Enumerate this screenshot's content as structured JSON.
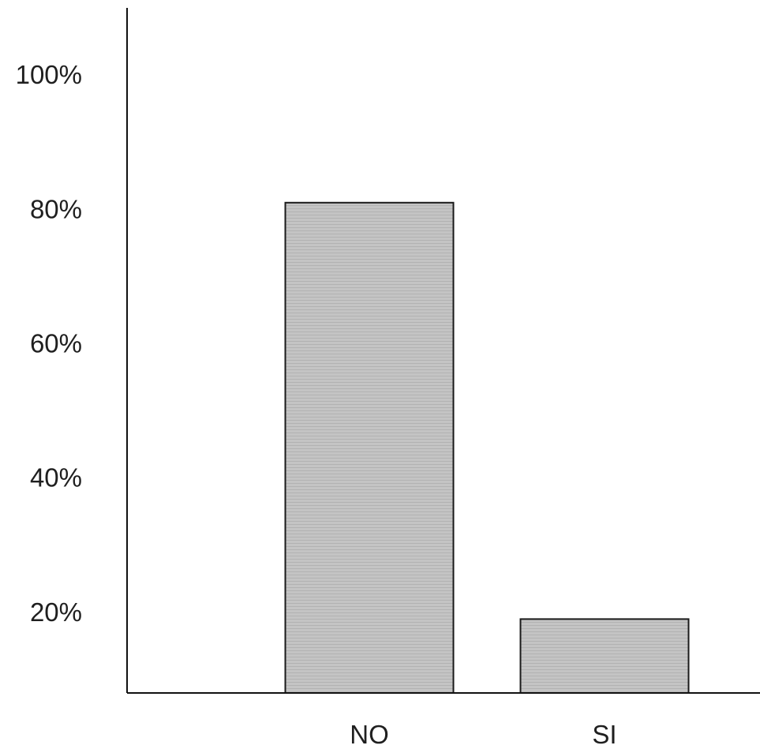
{
  "chart_data": {
    "type": "bar",
    "categories": [
      "NO",
      "SI"
    ],
    "values": [
      81,
      19
    ],
    "ylim": [
      8,
      110
    ],
    "yticks": [
      20,
      40,
      60,
      80,
      100
    ],
    "ytick_labels": [
      "20%",
      "40%",
      "60%",
      "80%",
      "100%"
    ],
    "grid": false,
    "legend": "none",
    "bar_color": "#c4c4c4",
    "axis_color": "#111111"
  }
}
